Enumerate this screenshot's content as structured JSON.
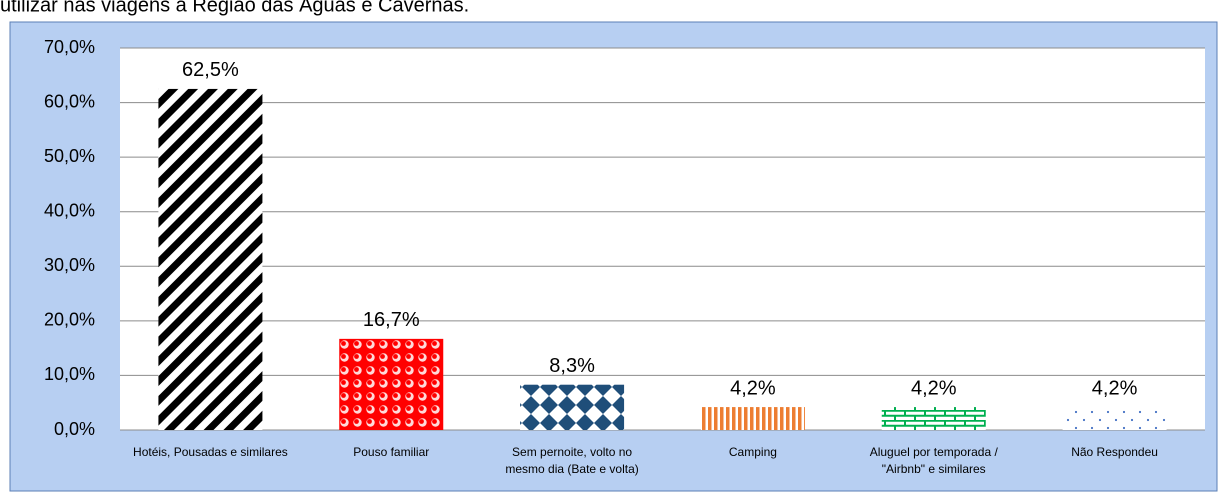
{
  "chart_data": {
    "type": "bar",
    "title": "utilizar nas viagens à Região das Águas e Cavernas.",
    "categories": [
      "Hotéis, Pousadas e similares",
      "Pouso familiar",
      "Sem pernoite, volto no mesmo dia (Bate e volta)",
      "Camping",
      "Aluguel por temporada / \"Airbnb\" e similares",
      "Não Respondeu"
    ],
    "values": [
      62.5,
      16.7,
      8.3,
      4.2,
      4.2,
      4.2
    ],
    "value_labels": [
      "62,5%",
      "16,7%",
      "8,3%",
      "4,2%",
      "4,2%",
      "4,2%"
    ],
    "colors": [
      "#000000",
      "#ff0000",
      "#1f4e79",
      "#ed7d31",
      "#00b050",
      "#4472c4"
    ],
    "ylim": [
      0,
      70
    ],
    "yticks": [
      {
        "value": 0,
        "label": "0,0%"
      },
      {
        "value": 10,
        "label": "10,0%"
      },
      {
        "value": 20,
        "label": "20,0%"
      },
      {
        "value": 30,
        "label": "30,0%"
      },
      {
        "value": 40,
        "label": "40,0%"
      },
      {
        "value": 50,
        "label": "50,0%"
      },
      {
        "value": 60,
        "label": "60,0%"
      },
      {
        "value": 70,
        "label": "70,0%"
      }
    ],
    "grid": true
  }
}
